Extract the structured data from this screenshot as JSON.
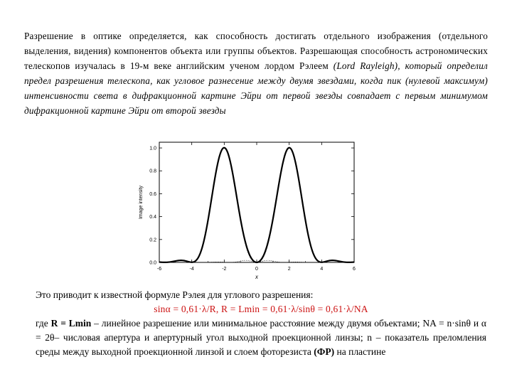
{
  "text": {
    "intro_part1": "Разрешение в оптике определяется, как способность достигать отдельного изображения (отдельного выделения, видения) компонентов объекта или группы объектов. Разрешающая способность астрономических телескопов изучалась в 19-м веке английским ученом лордом Рэлеем ",
    "intro_part2": "(Lord Rayleigh), который определил предел разрешения телескопа, как угловое разнесение между двумя звездами, когда пик (нулевой максимум) интенсивности света в дифракционной картине Эйри от первой звезды совпадает с первым минимумом дифракционной картине Эйри от второй звезды",
    "formula_intro": "Это приводит к известной формуле Рэлея для углового разрешения:",
    "formula": "sinα = 0,61·λ/R,  R = Lmin = 0,61·λ/sinθ = 0,61·λ/NA",
    "explanation": {
      "where": "где ",
      "R_eq": "R = Lmin",
      "part1": " – линейное разрешение или минимальное расстояние между двумя объектами; NA = n·sinθ и α = 2θ– числовая апертура и апертурный угол выходной проекционной линзы; n – показатель преломления среды между выходной проекционной линзой и слоем фоторезиста ",
      "fr": "(ФР)",
      "part2": " на пластине"
    }
  },
  "chart_data": {
    "type": "line",
    "xlabel": "x",
    "ylabel": "Image intensity",
    "xlim": [
      -6,
      6
    ],
    "ylim": [
      0,
      1.05
    ],
    "x_ticks": [
      "-6",
      "-4",
      "-2",
      "0",
      "2",
      "4",
      "6"
    ],
    "y_ticks": [
      "0.0",
      "0.2",
      "0.4",
      "0.6",
      "0.8",
      "1.0"
    ],
    "series": [
      {
        "style": "dotted",
        "peak_x": -2,
        "x_range": [
          -6,
          6
        ]
      },
      {
        "style": "dotted",
        "peak_x": 2,
        "x_range": [
          -6,
          6
        ]
      },
      {
        "style": "solid",
        "x_range": [
          -6,
          6
        ]
      }
    ]
  }
}
